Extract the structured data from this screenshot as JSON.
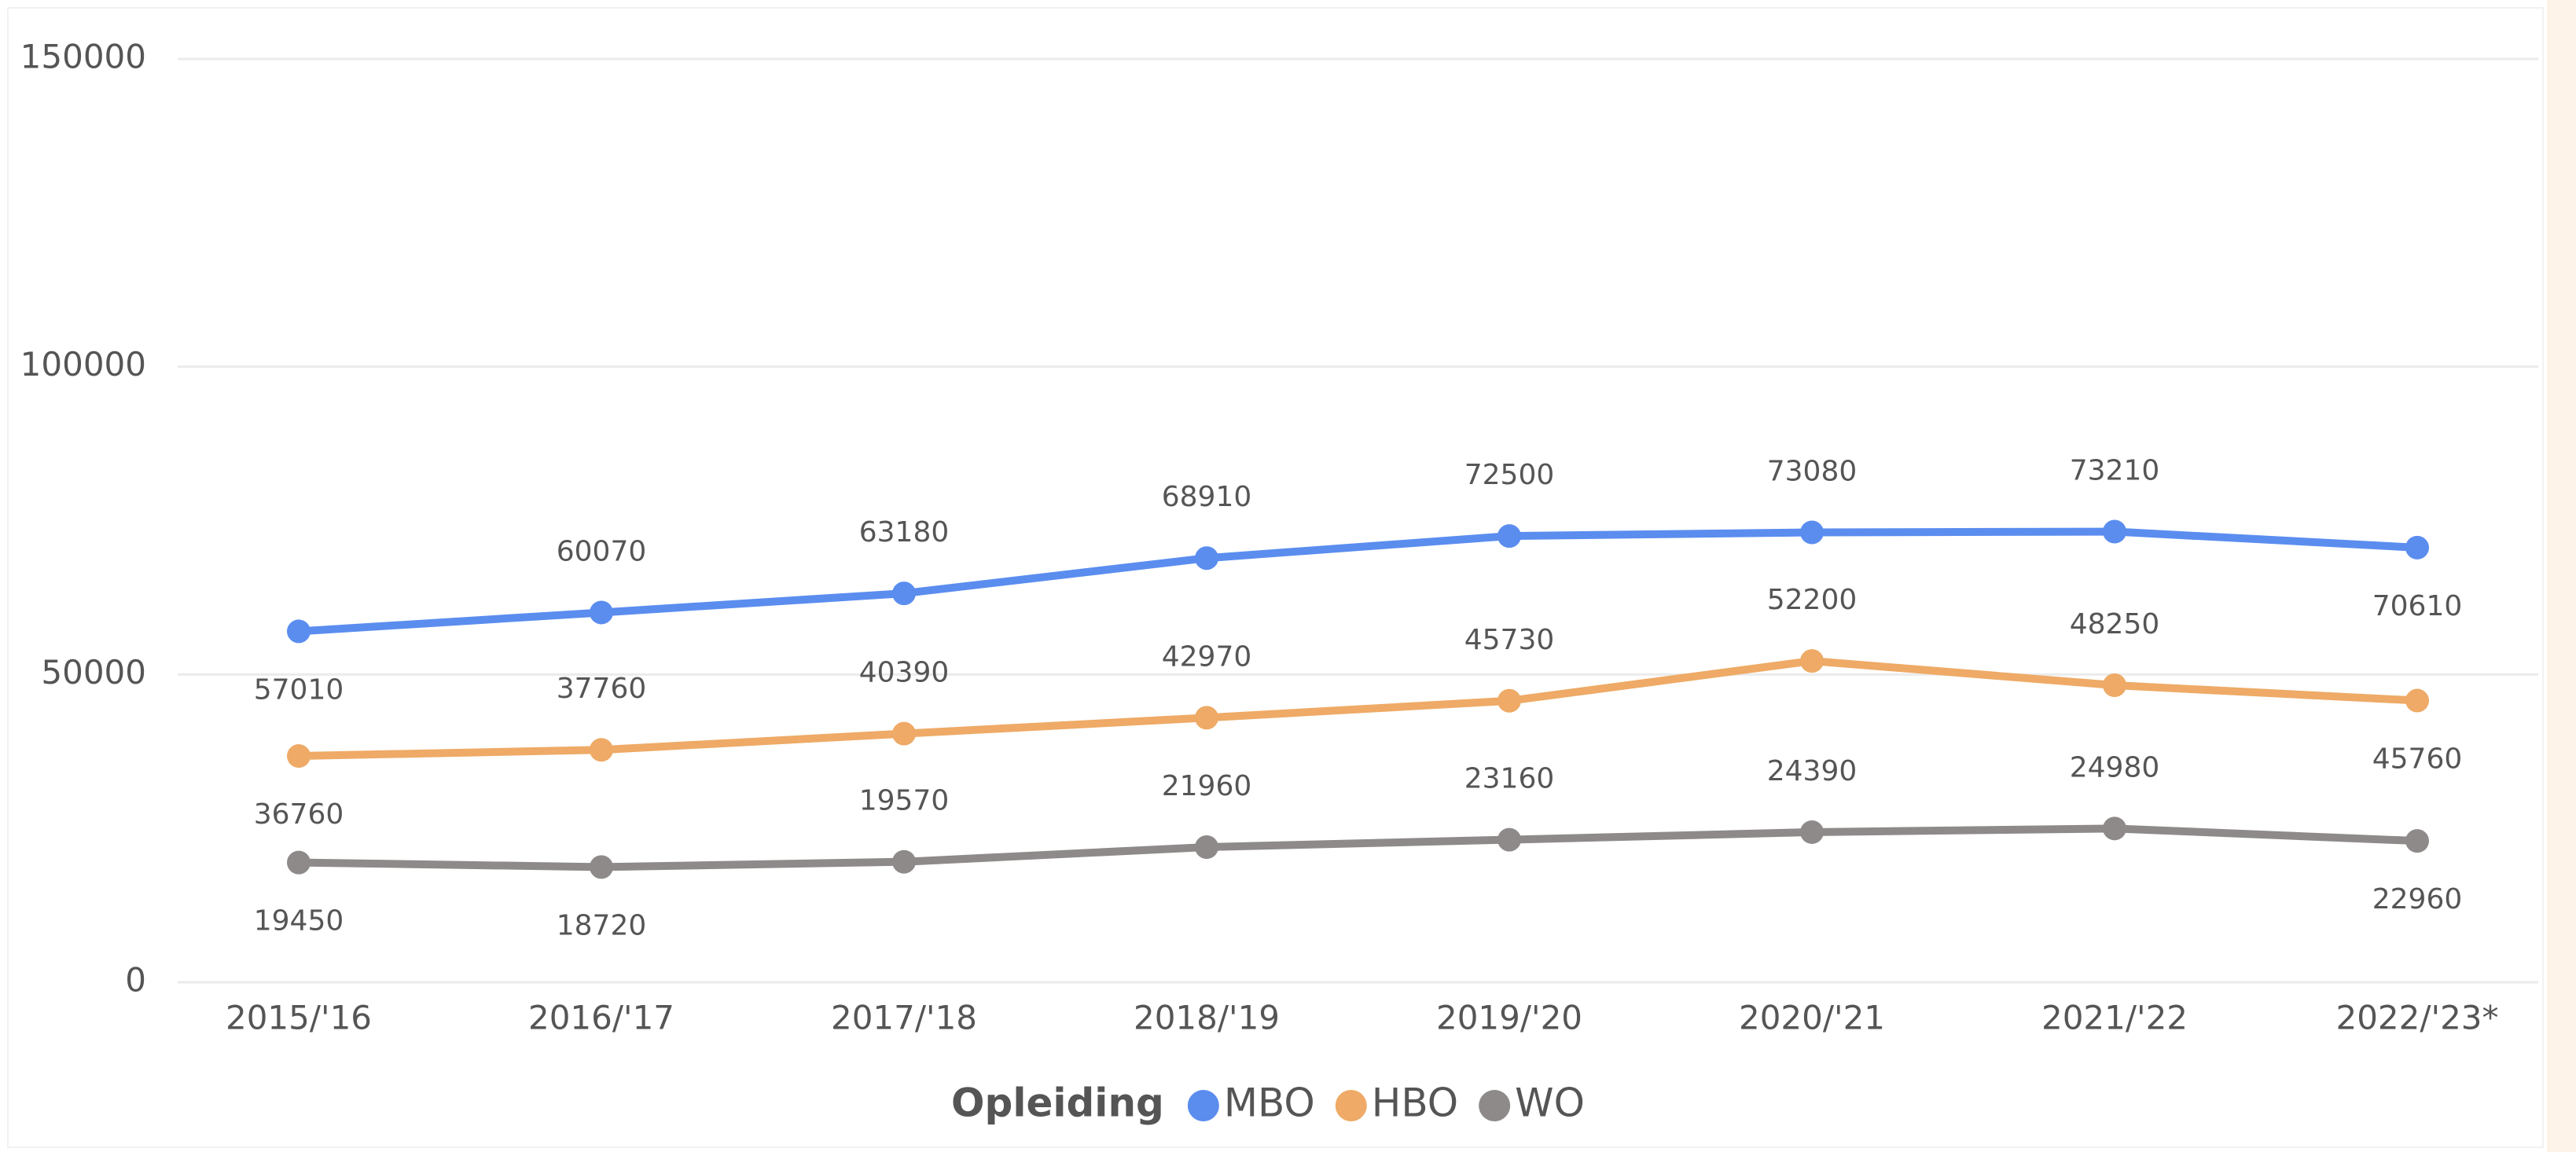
{
  "chart_data": {
    "type": "line",
    "categories": [
      "2015/'16",
      "2016/'17",
      "2017/'18",
      "2018/'19",
      "2019/'20",
      "2020/'21",
      "2021/'22",
      "2022/'23*"
    ],
    "series": [
      {
        "name": "MBO",
        "color": "#5b8def",
        "values": [
          57010,
          60070,
          63180,
          68910,
          72500,
          73080,
          73210,
          70610
        ]
      },
      {
        "name": "HBO",
        "color": "#eeaa66",
        "values": [
          36760,
          37760,
          40390,
          42970,
          45730,
          52200,
          48250,
          45760
        ]
      },
      {
        "name": "WO",
        "color": "#8e8a8a",
        "values": [
          19450,
          18720,
          19570,
          21960,
          23160,
          24390,
          24980,
          22960
        ]
      }
    ],
    "legend_title": "Opleiding",
    "ylim": [
      0,
      150000
    ],
    "yticks": [
      0,
      50000,
      100000,
      150000
    ],
    "grid": true,
    "legend": "bottom"
  }
}
